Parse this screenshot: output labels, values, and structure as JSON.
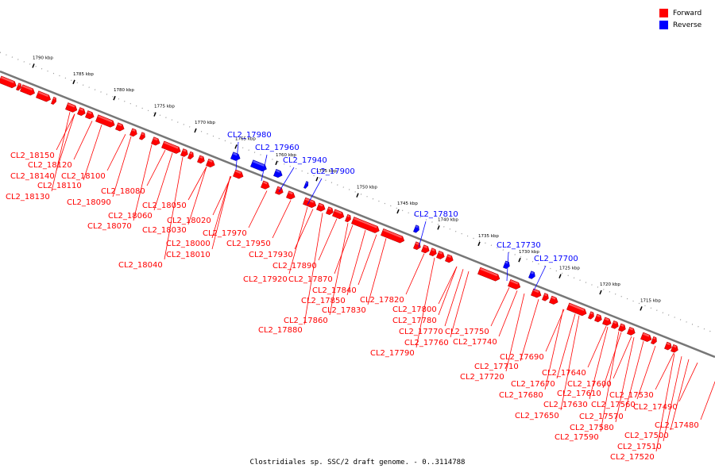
{
  "legend": {
    "forward_label": "Forward",
    "reverse_label": "Reverse",
    "forward_color": "#ff0000",
    "reverse_color": "#0000ff"
  },
  "caption": "Clostridiales sp. SSC/2 draft genome. - 0..3114788",
  "ruler": {
    "ticks": [
      "1790 kbp",
      "1785 kbp",
      "1780 kbp",
      "1775 kbp",
      "1770 kbp",
      "1765 kbp",
      "1760 kbp",
      "1755 kbp",
      "1750 kbp",
      "1745 kbp",
      "1740 kbp",
      "1735 kbp",
      "1730 kbp",
      "1725 kbp",
      "1720 kbp",
      "1715 kbp"
    ]
  },
  "reverse_genes": [
    "CL2_17980",
    "CL2_17960",
    "CL2_17940",
    "CL2_17900",
    "CL2_17810",
    "CL2_17730",
    "CL2_17700"
  ],
  "forward_genes": [
    "CL2_18150",
    "CL2_18120",
    "CL2_18140",
    "CL2_18100",
    "CL2_18110",
    "CL2_18130",
    "CL2_18080",
    "CL2_18090",
    "CL2_18050",
    "CL2_18060",
    "CL2_18070",
    "CL2_18020",
    "CL2_18030",
    "CL2_18010",
    "CL2_18000",
    "CL2_18040",
    "CL2_17970",
    "CL2_17950",
    "CL2_17930",
    "CL2_17890",
    "CL2_17920",
    "CL2_17870",
    "CL2_17840",
    "CL2_17850",
    "CL2_17830",
    "CL2_17860",
    "CL2_17880",
    "CL2_17820",
    "CL2_17800",
    "CL2_17780",
    "CL2_17770",
    "CL2_17760",
    "CL2_17790",
    "CL2_17750",
    "CL2_17740",
    "CL2_17690",
    "CL2_17710",
    "CL2_17720",
    "CL2_17640",
    "CL2_17670",
    "CL2_17600",
    "CL2_17680",
    "CL2_17610",
    "CL2_17630",
    "CL2_17650",
    "CL2_17560",
    "CL2_17530",
    "CL2_17570",
    "CL2_17490",
    "CL2_17580",
    "CL2_17590",
    "CL2_17480",
    "CL2_17500",
    "CL2_17510",
    "CL2_17520"
  ]
}
